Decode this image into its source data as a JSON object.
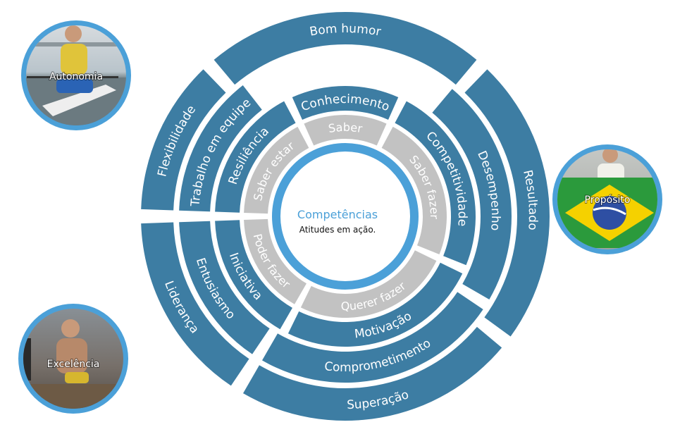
{
  "colors": {
    "ring": "#3d7da3",
    "inner": "#c2c2c2",
    "center_border": "#4ba0d8",
    "photo_border": "#4ba0d8",
    "title": "#4ba0d8"
  },
  "center": {
    "title": "Competências",
    "subtitle": "Atitudes em ação."
  },
  "inner_ring": [
    {
      "label": "Saber"
    },
    {
      "label": "Saber fazer"
    },
    {
      "label": "Querer fazer"
    },
    {
      "label": "Poder fazer"
    },
    {
      "label": "Saber estar"
    }
  ],
  "ring2": [
    {
      "label": "Conhecimento"
    },
    {
      "label": "Competitividade"
    },
    {
      "label": "Motivação"
    },
    {
      "label": "Iniciativa"
    },
    {
      "label": "Resiliência"
    }
  ],
  "ring3": [
    {
      "label": "Desempenho"
    },
    {
      "label": "Comprometimento"
    },
    {
      "label": "Entusiasmo"
    },
    {
      "label": "Trabalho em equipe"
    }
  ],
  "ring4": [
    {
      "label": "Bom humor"
    },
    {
      "label": "Resultado"
    },
    {
      "label": "Superação"
    },
    {
      "label": "Liderança"
    },
    {
      "label": "Flexibilidade"
    }
  ],
  "photos": [
    {
      "label": "Autonomia",
      "icon": "rower-photo"
    },
    {
      "label": "Propósito",
      "icon": "brazil-flag-photo"
    },
    {
      "label": "Excelência",
      "icon": "athlete-dock-photo"
    }
  ]
}
